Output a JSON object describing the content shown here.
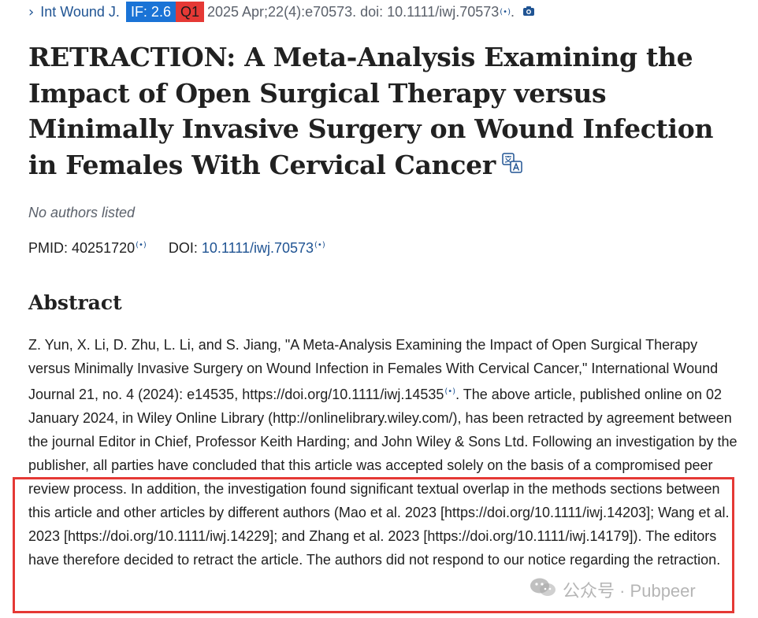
{
  "citation": {
    "journal": "Int Wound J.",
    "impact_factor": "IF: 2.6",
    "quartile": "Q1",
    "details": "2025 Apr;22(4):e70573. doi: 10.1111/iwj.70573",
    "details_end": "."
  },
  "article": {
    "title": "RETRACTION: A Meta-Analysis Examining the Impact of Open Surgical Therapy versus Minimally Invasive Surgery on Wound Infection in Females With Cervical Cancer",
    "authors": "No authors listed",
    "pmid_label": "PMID:",
    "pmid": "40251720",
    "doi_label": "DOI:",
    "doi": "10.1111/iwj.70573"
  },
  "abstract": {
    "heading": "Abstract",
    "part1": "Z. Yun, X. Li, D. Zhu, L. Li, and S. Jiang, \"A Meta-Analysis Examining the Impact of Open Surgical Therapy versus Minimally Invasive Surgery on Wound Infection in Females With Cervical Cancer,\" International Wound Journal 21, no. 4 (2024): e14535, https://doi.org/10.1111/iwj.14535",
    "part2": ". The above article, published online on 02 January 2024, in Wiley Online Library (http://onlinelibrary.wiley.com/), has been retracted by agreement between the journal Editor in Chief, Professor Keith Harding; and John Wiley & Sons Ltd. Following an investigation by the publisher, all parties have concluded that this article was accepted solely on the basis of a compromised peer review process. In addition, the investigation found significant textual overlap in the methods sections between this article and other articles by different authors (Mao et al. 2023 [https://doi.org/10.1111/iwj.14203]; Wang et al. 2023 [https://doi.org/10.1111/iwj.14229]; and Zhang et al. 2023 [https://doi.org/10.1111/iwj.14179]). The editors have therefore decided to retract the article. The authors did not respond to our notice regarding the retraction."
  },
  "watermark": {
    "text": "公众号 · Pubpeer"
  },
  "icons": {
    "chevron": "chevron-right-icon",
    "broadcast": "broadcast-icon",
    "camera": "camera-icon",
    "translate": "translate-icon",
    "wechat": "wechat-icon"
  },
  "colors": {
    "link": "#205493",
    "if_badge": "#1a73d6",
    "q_badge": "#e53935",
    "highlight_border": "#e53935",
    "muted_text": "#5b616b"
  }
}
